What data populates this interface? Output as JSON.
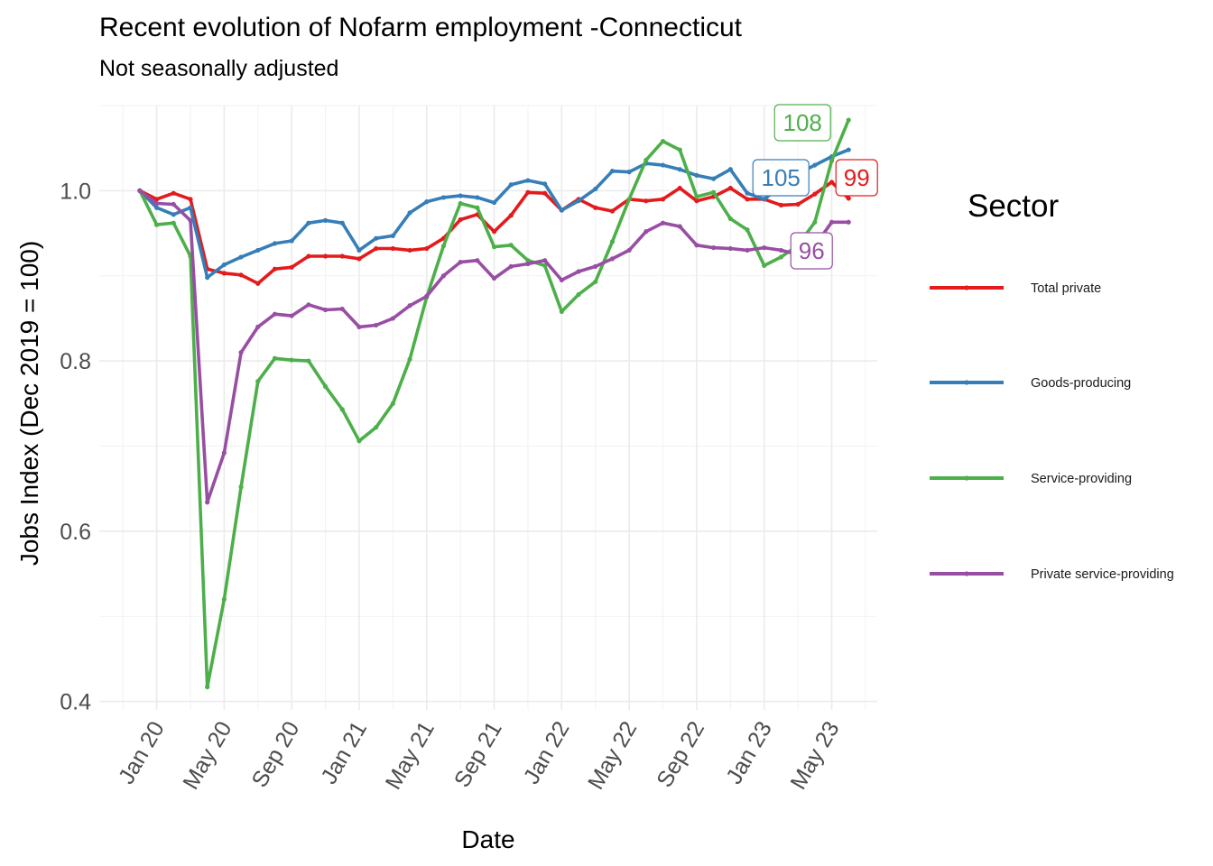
{
  "chart_data": {
    "type": "line",
    "title": "Recent evolution of Nofarm employment -Connecticut",
    "subtitle": "Not seasonally adjusted",
    "xlabel": "Date",
    "ylabel": "Jobs Index (Dec 2019 = 100)",
    "y_ticks": [
      0.4,
      0.6,
      0.8,
      1.0
    ],
    "y_tick_labels": [
      "0.4",
      "0.6",
      "0.8",
      "1.0"
    ],
    "ylim": [
      0.39,
      1.1
    ],
    "xlim": [
      "2019-10",
      "2023-08"
    ],
    "x_ticks": [
      "2020-01",
      "2020-05",
      "2020-09",
      "2021-01",
      "2021-05",
      "2021-09",
      "2022-01",
      "2022-05",
      "2022-09",
      "2023-01",
      "2023-05"
    ],
    "x_tick_labels": [
      "Jan 20",
      "May 20",
      "Sep 20",
      "Jan 21",
      "May 21",
      "Sep 21",
      "Jan 22",
      "May 22",
      "Sep 22",
      "Jan 23",
      "May 23"
    ],
    "x": [
      "2019-12",
      "2020-01",
      "2020-02",
      "2020-03",
      "2020-04",
      "2020-05",
      "2020-06",
      "2020-07",
      "2020-08",
      "2020-09",
      "2020-10",
      "2020-11",
      "2020-12",
      "2021-01",
      "2021-02",
      "2021-03",
      "2021-04",
      "2021-05",
      "2021-06",
      "2021-07",
      "2021-08",
      "2021-09",
      "2021-10",
      "2021-11",
      "2021-12",
      "2022-01",
      "2022-02",
      "2022-03",
      "2022-04",
      "2022-05",
      "2022-06",
      "2022-07",
      "2022-08",
      "2022-09",
      "2022-10",
      "2022-11",
      "2022-12",
      "2023-01",
      "2023-02",
      "2023-03",
      "2023-04",
      "2023-05",
      "2023-06"
    ],
    "grid": true,
    "legend": {
      "title": "Sector",
      "position": "right"
    },
    "series": [
      {
        "name": "Total private",
        "color": "#e41a1c",
        "end_label": "99",
        "values": [
          1.0,
          0.99,
          0.997,
          0.99,
          0.908,
          0.903,
          0.901,
          0.891,
          0.908,
          0.91,
          0.923,
          0.923,
          0.923,
          0.92,
          0.932,
          0.932,
          0.93,
          0.932,
          0.944,
          0.966,
          0.972,
          0.952,
          0.971,
          0.998,
          0.997,
          0.977,
          0.99,
          0.98,
          0.976,
          0.99,
          0.988,
          0.99,
          1.003,
          0.988,
          0.993,
          1.003,
          0.99,
          0.99,
          0.983,
          0.984,
          0.996,
          1.01,
          0.991
        ]
      },
      {
        "name": "Goods-producing",
        "color": "#377eb8",
        "end_label": "105",
        "values": [
          1.0,
          0.98,
          0.972,
          0.98,
          0.898,
          0.913,
          0.922,
          0.93,
          0.938,
          0.941,
          0.962,
          0.965,
          0.962,
          0.93,
          0.944,
          0.947,
          0.974,
          0.987,
          0.992,
          0.994,
          0.992,
          0.986,
          1.007,
          1.012,
          1.008,
          0.977,
          0.988,
          1.002,
          1.023,
          1.022,
          1.032,
          1.03,
          1.025,
          1.018,
          1.014,
          1.025,
          0.997,
          0.99,
          1.005,
          1.02,
          1.03,
          1.04,
          1.048
        ]
      },
      {
        "name": "Service-providing",
        "color": "#4daf4a",
        "end_label": "108",
        "values": [
          1.0,
          0.96,
          0.962,
          0.923,
          0.417,
          0.52,
          0.652,
          0.776,
          0.803,
          0.801,
          0.8,
          0.77,
          0.743,
          0.706,
          0.722,
          0.75,
          0.802,
          0.875,
          0.935,
          0.985,
          0.98,
          0.934,
          0.936,
          0.918,
          0.912,
          0.858,
          0.878,
          0.893,
          0.94,
          0.99,
          1.036,
          1.058,
          1.048,
          0.993,
          0.998,
          0.967,
          0.954,
          0.912,
          0.922,
          0.936,
          0.963,
          1.035,
          1.083
        ]
      },
      {
        "name": "Private service-providing",
        "color": "#984ea3",
        "end_label": "96",
        "values": [
          1.0,
          0.985,
          0.984,
          0.965,
          0.634,
          0.692,
          0.81,
          0.84,
          0.855,
          0.853,
          0.866,
          0.86,
          0.861,
          0.84,
          0.842,
          0.85,
          0.865,
          0.876,
          0.9,
          0.916,
          0.918,
          0.897,
          0.911,
          0.914,
          0.918,
          0.895,
          0.905,
          0.911,
          0.92,
          0.93,
          0.952,
          0.962,
          0.958,
          0.936,
          0.933,
          0.932,
          0.93,
          0.933,
          0.93,
          0.925,
          0.935,
          0.963,
          0.963
        ]
      }
    ]
  }
}
